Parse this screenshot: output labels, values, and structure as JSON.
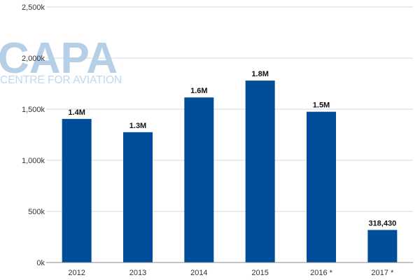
{
  "watermark": {
    "logo": "CAPA",
    "tagline": "CENTRE FOR AVIATION"
  },
  "colors": {
    "bar": "#004e9a",
    "grid": "#d9d9d9",
    "axis": "#888888"
  },
  "chart_data": {
    "type": "bar",
    "categories": [
      "2012",
      "2013",
      "2014",
      "2015",
      "2016 *",
      "2017 *"
    ],
    "values": [
      1405000,
      1275000,
      1615000,
      1780000,
      1475000,
      318430
    ],
    "data_labels": [
      "1.4M",
      "1.3M",
      "1.6M",
      "1.8M",
      "1.5M",
      "318,430"
    ],
    "y_ticks": [
      0,
      500000,
      1000000,
      1500000,
      2000000,
      2500000
    ],
    "y_tick_labels": [
      "0k",
      "500k",
      "1,000k",
      "1,500k",
      "2,000k",
      "2,500k"
    ],
    "ylim": [
      0,
      2500000
    ],
    "title": "",
    "xlabel": "",
    "ylabel": "",
    "grid": true,
    "legend": "none"
  }
}
